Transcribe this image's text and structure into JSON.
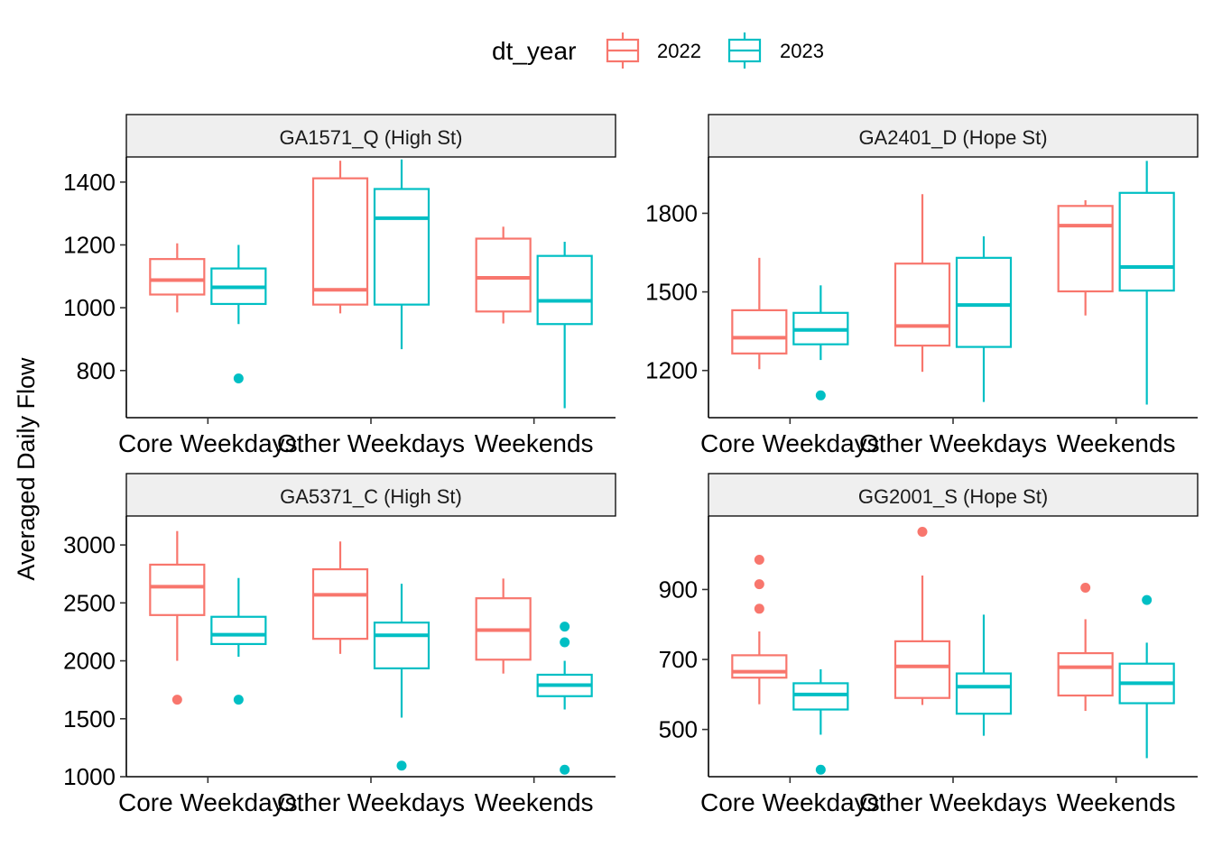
{
  "chart_data": {
    "type": "boxplot",
    "ylabel": "Averaged Daily Flow",
    "legend": {
      "title": "dt_year",
      "placement": "top",
      "entries": [
        {
          "name": "2022",
          "color": "#F8766D"
        },
        {
          "name": "2023",
          "color": "#00BFC4"
        }
      ]
    },
    "categories": [
      "Core Weekdays",
      "Other Weekdays",
      "Weekends"
    ],
    "panels": [
      {
        "title": "GA1571_Q (High St)",
        "ylim": [
          650,
          1480
        ],
        "yticks": [
          800,
          1000,
          1200,
          1400
        ],
        "boxes": [
          {
            "category": "Core Weekdays",
            "series": "2022",
            "min": 985,
            "q1": 1042,
            "median": 1088,
            "q3": 1155,
            "max": 1205,
            "outliers": []
          },
          {
            "category": "Core Weekdays",
            "series": "2023",
            "min": 948,
            "q1": 1012,
            "median": 1065,
            "q3": 1125,
            "max": 1200,
            "outliers": [
              775
            ]
          },
          {
            "category": "Other Weekdays",
            "series": "2022",
            "min": 982,
            "q1": 1010,
            "median": 1057,
            "q3": 1412,
            "max": 1468,
            "outliers": []
          },
          {
            "category": "Other Weekdays",
            "series": "2023",
            "min": 868,
            "q1": 1010,
            "median": 1285,
            "q3": 1378,
            "max": 1472,
            "outliers": []
          },
          {
            "category": "Weekends",
            "series": "2022",
            "min": 950,
            "q1": 988,
            "median": 1095,
            "q3": 1220,
            "max": 1258,
            "outliers": []
          },
          {
            "category": "Weekends",
            "series": "2023",
            "min": 680,
            "q1": 948,
            "median": 1022,
            "q3": 1165,
            "max": 1210,
            "outliers": []
          }
        ]
      },
      {
        "title": "GA2401_D (Hope St)",
        "ylim": [
          1020,
          2015
        ],
        "yticks": [
          1200,
          1500,
          1800
        ],
        "boxes": [
          {
            "category": "Core Weekdays",
            "series": "2022",
            "min": 1205,
            "q1": 1265,
            "median": 1325,
            "q3": 1430,
            "max": 1630,
            "outliers": []
          },
          {
            "category": "Core Weekdays",
            "series": "2023",
            "min": 1240,
            "q1": 1300,
            "median": 1355,
            "q3": 1420,
            "max": 1525,
            "outliers": [
              1105
            ]
          },
          {
            "category": "Other Weekdays",
            "series": "2022",
            "min": 1195,
            "q1": 1295,
            "median": 1370,
            "q3": 1608,
            "max": 1873,
            "outliers": []
          },
          {
            "category": "Other Weekdays",
            "series": "2023",
            "min": 1080,
            "q1": 1290,
            "median": 1450,
            "q3": 1630,
            "max": 1712,
            "outliers": []
          },
          {
            "category": "Weekends",
            "series": "2022",
            "min": 1410,
            "q1": 1502,
            "median": 1753,
            "q3": 1828,
            "max": 1850,
            "outliers": []
          },
          {
            "category": "Weekends",
            "series": "2023",
            "min": 1070,
            "q1": 1505,
            "median": 1595,
            "q3": 1878,
            "max": 2000,
            "outliers": []
          }
        ]
      },
      {
        "title": "GA5371_C (High St)",
        "ylim": [
          1000,
          3250
        ],
        "yticks": [
          1000,
          1500,
          2000,
          2500,
          3000
        ],
        "boxes": [
          {
            "category": "Core Weekdays",
            "series": "2022",
            "min": 2000,
            "q1": 2395,
            "median": 2640,
            "q3": 2830,
            "max": 3120,
            "outliers": [
              1665
            ]
          },
          {
            "category": "Core Weekdays",
            "series": "2023",
            "min": 2035,
            "q1": 2145,
            "median": 2225,
            "q3": 2380,
            "max": 2715,
            "outliers": [
              1665
            ]
          },
          {
            "category": "Other Weekdays",
            "series": "2022",
            "min": 2060,
            "q1": 2190,
            "median": 2570,
            "q3": 2790,
            "max": 3030,
            "outliers": []
          },
          {
            "category": "Other Weekdays",
            "series": "2023",
            "min": 1510,
            "q1": 1935,
            "median": 2220,
            "q3": 2330,
            "max": 2665,
            "outliers": [
              1095
            ]
          },
          {
            "category": "Weekends",
            "series": "2022",
            "min": 1890,
            "q1": 2010,
            "median": 2265,
            "q3": 2540,
            "max": 2710,
            "outliers": []
          },
          {
            "category": "Weekends",
            "series": "2023",
            "min": 1580,
            "q1": 1695,
            "median": 1790,
            "q3": 1880,
            "max": 2000,
            "outliers": [
              2295,
              2160,
              1060
            ]
          }
        ]
      },
      {
        "title": "GG2001_S (Hope St)",
        "ylim": [
          365,
          1110
        ],
        "yticks": [
          500,
          700,
          900
        ],
        "boxes": [
          {
            "category": "Core Weekdays",
            "series": "2022",
            "min": 572,
            "q1": 648,
            "median": 665,
            "q3": 712,
            "max": 780,
            "outliers": [
              985,
              915,
              845
            ]
          },
          {
            "category": "Core Weekdays",
            "series": "2023",
            "min": 485,
            "q1": 557,
            "median": 600,
            "q3": 632,
            "max": 672,
            "outliers": [
              385
            ]
          },
          {
            "category": "Other Weekdays",
            "series": "2022",
            "min": 570,
            "q1": 590,
            "median": 680,
            "q3": 752,
            "max": 940,
            "outliers": [
              1065
            ]
          },
          {
            "category": "Other Weekdays",
            "series": "2023",
            "min": 482,
            "q1": 545,
            "median": 622,
            "q3": 660,
            "max": 828,
            "outliers": []
          },
          {
            "category": "Weekends",
            "series": "2022",
            "min": 553,
            "q1": 597,
            "median": 678,
            "q3": 718,
            "max": 815,
            "outliers": [
              905
            ]
          },
          {
            "category": "Weekends",
            "series": "2023",
            "min": 418,
            "q1": 575,
            "median": 632,
            "q3": 688,
            "max": 748,
            "outliers": [
              870
            ]
          }
        ]
      }
    ]
  }
}
